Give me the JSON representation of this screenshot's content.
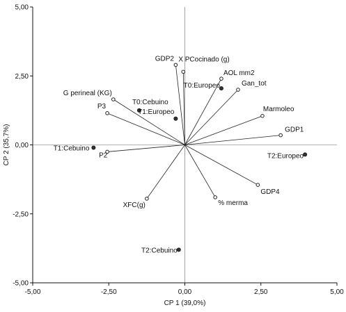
{
  "chart_data": {
    "type": "scatter",
    "subtype": "biplot",
    "title": "",
    "xlabel": "CP 1 (39,0%)",
    "ylabel": "CP 2 (35,7%)",
    "xlim": [
      -5.0,
      5.0
    ],
    "ylim": [
      -5.0,
      5.0
    ],
    "xticks": [
      "-5,00",
      "-2,50",
      "0,00",
      "2,50",
      "5,00"
    ],
    "yticks": [
      "-5,00",
      "-2,50",
      "0,00",
      "2,50",
      "5,00"
    ],
    "xtick_values": [
      -5.0,
      -2.5,
      0.0,
      2.5,
      5.0
    ],
    "ytick_values": [
      -5.0,
      -2.5,
      0.0,
      2.5,
      5.0
    ],
    "grid": false,
    "variables": [
      {
        "label": "GDP2",
        "x": -0.3,
        "y": 2.9
      },
      {
        "label": "X PCocinado (g)",
        "x": -0.05,
        "y": 2.65
      },
      {
        "label": "AOL mm2",
        "x": 1.2,
        "y": 2.4
      },
      {
        "label": "Gan_tot",
        "x": 1.75,
        "y": 2.0
      },
      {
        "label": "Marmoleo",
        "x": 2.55,
        "y": 1.05
      },
      {
        "label": "GDP1",
        "x": 3.15,
        "y": 0.35
      },
      {
        "label": "GDP4",
        "x": 2.4,
        "y": -1.45
      },
      {
        "label": "% merma",
        "x": 1.0,
        "y": -1.9
      },
      {
        "label": "XFC(g)",
        "x": -1.25,
        "y": -1.95
      },
      {
        "label": "P2",
        "x": -2.55,
        "y": -0.25
      },
      {
        "label": "P3",
        "x": -2.55,
        "y": 1.15
      },
      {
        "label": "G perineal (KG)",
        "x": -2.35,
        "y": 1.65
      }
    ],
    "groups": [
      {
        "label": "T0:Cebuino",
        "x": -1.5,
        "y": 1.25
      },
      {
        "label": "T1:Europeo",
        "x": -0.3,
        "y": 0.95
      },
      {
        "label": "T0:Europeo",
        "x": 1.2,
        "y": 2.05
      },
      {
        "label": "T1:Cebuino",
        "x": -3.0,
        "y": -0.1
      },
      {
        "label": "T2:Europeo",
        "x": 3.95,
        "y": -0.35
      },
      {
        "label": "T2:Cebuino",
        "x": -0.2,
        "y": -3.8
      }
    ]
  }
}
